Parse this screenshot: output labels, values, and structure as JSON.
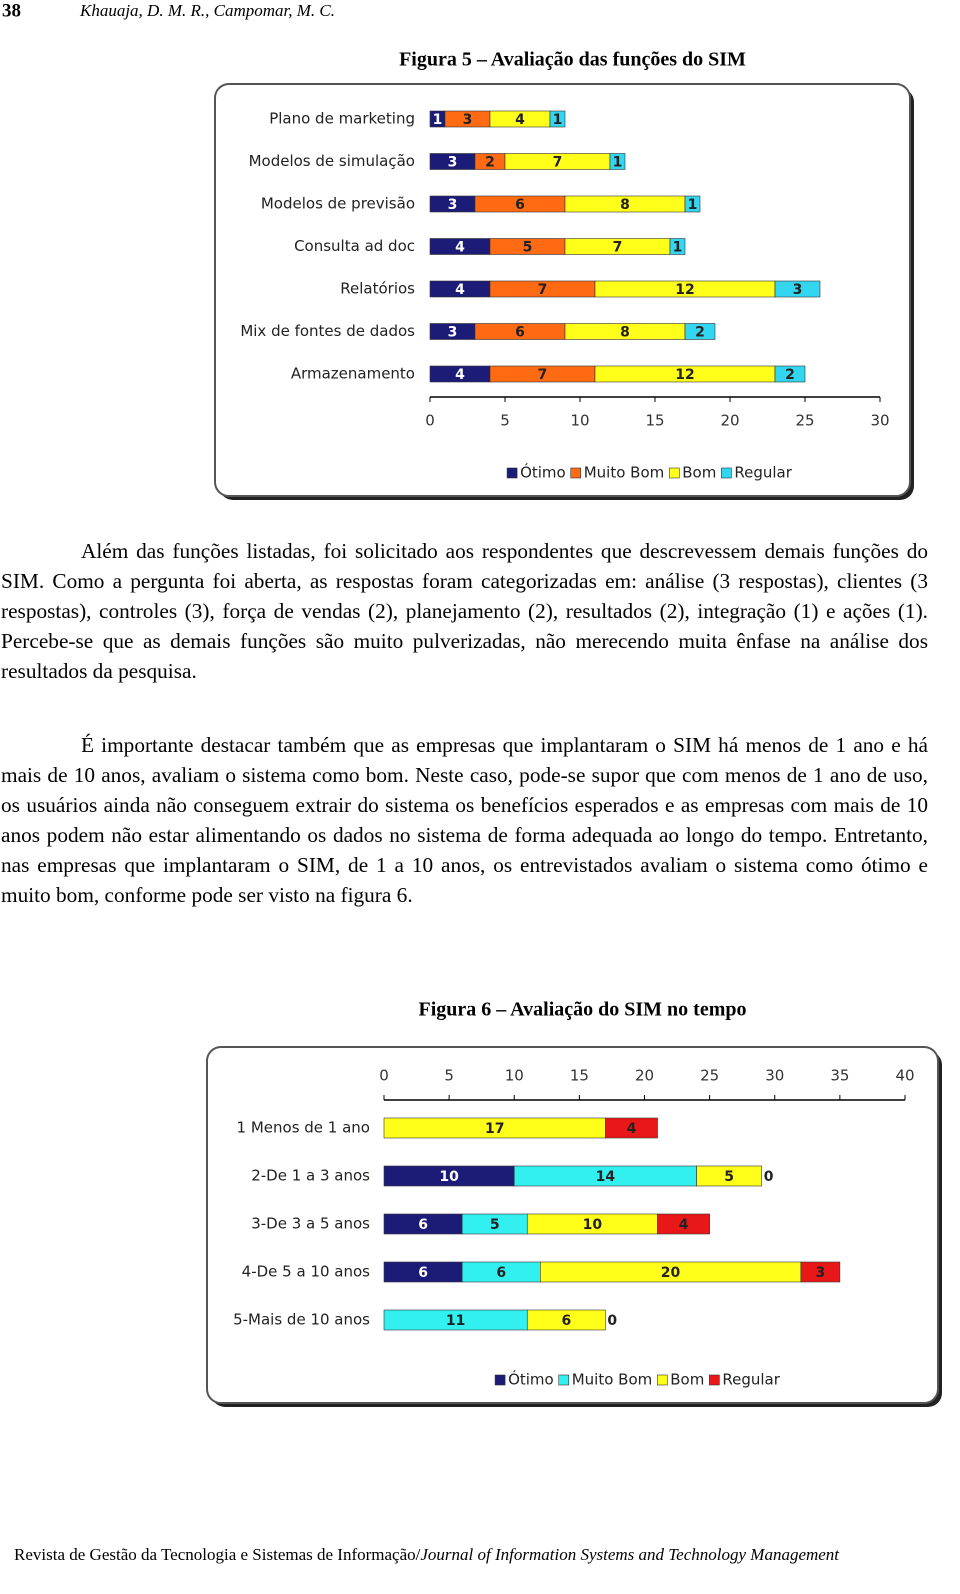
{
  "header": {
    "page_number": "38",
    "authors": "Khauaja, D. M. R., Campomar, M. C."
  },
  "chart_data": [
    {
      "type": "bar",
      "orientation": "horizontal",
      "stacked": true,
      "title": "Figura 5 – Avaliação das funções do SIM",
      "categories": [
        "Plano de marketing",
        "Modelos de simulação",
        "Modelos de previsão",
        "Consulta ad doc",
        "Relatórios",
        "Mix de fontes de dados",
        "Armazenamento"
      ],
      "series": [
        {
          "name": "Ótimo",
          "color": "#1c1c78",
          "values": [
            1,
            3,
            3,
            4,
            4,
            3,
            4
          ]
        },
        {
          "name": "Muito Bom",
          "color": "#ff6a13",
          "values": [
            3,
            2,
            6,
            5,
            7,
            6,
            7
          ]
        },
        {
          "name": "Bom",
          "color": "#ffff1a",
          "values": [
            4,
            7,
            8,
            7,
            12,
            8,
            12
          ]
        },
        {
          "name": "Regular",
          "color": "#33d6f0",
          "values": [
            1,
            1,
            1,
            1,
            3,
            2,
            2
          ]
        }
      ],
      "xlim": [
        0,
        30
      ],
      "xticks": [
        0,
        5,
        10,
        15,
        20,
        25,
        30
      ],
      "x_axis_position": "bottom",
      "legend": "bottom"
    },
    {
      "type": "bar",
      "orientation": "horizontal",
      "stacked": true,
      "title": "Figura 6 – Avaliação do SIM no tempo",
      "categories": [
        "1 Menos de 1 ano",
        "2-De 1 a 3 anos",
        "3-De 3 a 5 anos",
        "4-De 5 a 10 anos",
        "5-Mais de 10 anos"
      ],
      "series": [
        {
          "name": "Ótimo",
          "color": "#1c1c78",
          "values": [
            0,
            10,
            6,
            6,
            null
          ]
        },
        {
          "name": "Muito Bom",
          "color": "#33f0f0",
          "values": [
            null,
            14,
            5,
            6,
            11
          ]
        },
        {
          "name": "Bom",
          "color": "#ffff1a",
          "values": [
            17,
            5,
            10,
            20,
            6
          ]
        },
        {
          "name": "Regular",
          "color": "#e81818",
          "values": [
            4,
            0,
            4,
            3,
            0
          ]
        }
      ],
      "xlim": [
        0,
        40
      ],
      "xticks": [
        0,
        5,
        10,
        15,
        20,
        25,
        30,
        35,
        40
      ],
      "x_axis_position": "top",
      "legend": "bottom"
    }
  ],
  "paragraphs": [
    "Além das funções listadas, foi solicitado aos respondentes que descrevessem demais funções do SIM. Como a pergunta foi aberta, as respostas foram categorizadas em: análise (3 respostas), clientes (3 respostas), controles (3), força de vendas (2), planejamento (2), resultados (2), integração (1) e ações (1). Percebe-se que as demais funções são muito pulverizadas, não merecendo muita ênfase na análise dos resultados da pesquisa.",
    "É importante destacar também que as empresas que implantaram o SIM há menos de 1 ano e há mais de 10 anos, avaliam o sistema como bom. Neste caso, pode-se supor que com menos de 1 ano de uso, os usuários ainda não conseguem extrair do sistema os benefícios esperados e as empresas com mais de 10 anos podem não estar alimentando os dados no sistema de forma adequada ao longo do tempo. Entretanto, nas empresas que implantaram o SIM, de 1 a 10 anos, os entrevistados avaliam o sistema como ótimo e muito bom, conforme pode ser visto na figura 6."
  ],
  "footer": {
    "journal": "Revista de Gestão da Tecnologia e Sistemas de Informação/",
    "journal_en": "Journal of Information Systems and Technology Management"
  }
}
